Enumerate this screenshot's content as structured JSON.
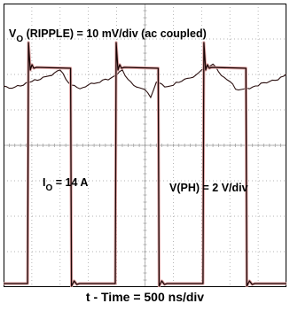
{
  "chart_data": {
    "type": "line",
    "title": "",
    "xlabel": "t - Time = 500 ns/div",
    "x_divisions": 10,
    "y_divisions": 8,
    "grid": true,
    "annotations": {
      "ripple_main": "V",
      "ripple_sub": "O",
      "ripple_rest": " (RIPPLE) = 10 mV/div (ac coupled)",
      "current_main": "I",
      "current_sub": "O",
      "current_rest": " = 14 A",
      "phase": "V(PH) = 2 V/div"
    },
    "series": [
      {
        "channel": "ripple",
        "unit": "mV",
        "volts_per_div": 10,
        "reference_div": 5.7,
        "x_div": [
          0.0,
          0.2,
          0.4,
          0.6,
          0.8,
          1.0,
          1.2,
          1.4,
          1.6,
          1.8,
          2.0,
          2.2,
          2.4,
          2.6,
          2.8,
          3.0,
          3.2,
          3.4,
          3.6,
          3.8,
          4.0,
          4.2,
          4.4,
          4.6,
          4.8,
          5.0,
          5.2,
          5.4,
          5.6,
          5.8,
          6.0,
          6.2,
          6.4,
          6.6,
          6.8,
          7.0,
          7.2,
          7.4,
          7.6,
          7.8,
          8.0,
          8.2,
          8.4,
          8.6,
          8.8,
          9.0,
          9.2,
          9.4,
          9.6,
          9.8,
          10.0
        ],
        "values": [
          -0.5,
          -1.0,
          -0.5,
          0.0,
          0.5,
          1.0,
          1.5,
          2.0,
          2.5,
          3.5,
          4.5,
          1.5,
          0.0,
          -0.5,
          -1.0,
          0.0,
          0.5,
          1.0,
          1.5,
          2.0,
          3.0,
          4.0,
          1.5,
          0.0,
          -0.5,
          -1.5,
          -3.5,
          1.0,
          0.0,
          -0.5,
          0.0,
          1.0,
          1.5,
          2.0,
          3.0,
          4.0,
          5.0,
          6.0,
          4.0,
          2.0,
          1.0,
          -1.0,
          -1.5,
          -1.0,
          -0.5,
          0.0,
          0.5,
          1.0,
          1.5,
          2.0,
          3.0
        ]
      },
      {
        "channel": "phase",
        "unit": "V",
        "volts_per_div": 2,
        "period_div": 3.1,
        "duty": 0.5,
        "high_v": 12.2,
        "low_v": 0,
        "overshoot_v": 1.4,
        "rising_edges_div": [
          0.85,
          3.95,
          7.05
        ]
      }
    ]
  }
}
